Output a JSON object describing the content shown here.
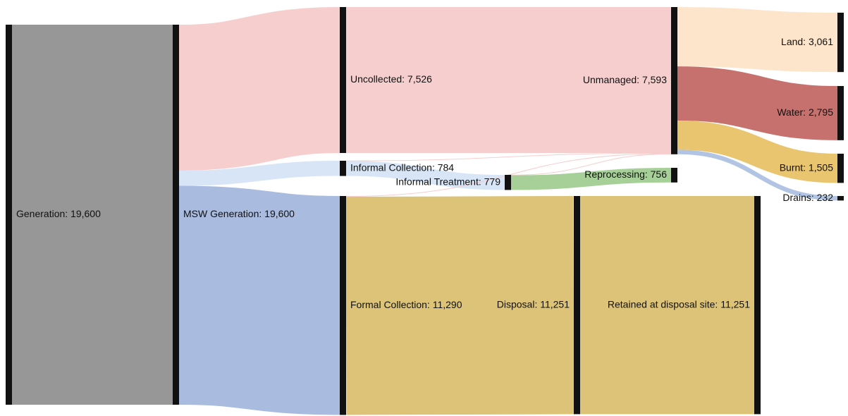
{
  "chart_data": {
    "type": "sankey",
    "nodes": [
      {
        "label": "Generation: 19,600",
        "value": 19600
      },
      {
        "label": "MSW Generation: 19,600",
        "value": 19600
      },
      {
        "label": "Uncollected: 7,526",
        "value": 7526
      },
      {
        "label": "Informal Collection: 784",
        "value": 784
      },
      {
        "label": "Formal Collection: 11,290",
        "value": 11290
      },
      {
        "label": "Informal Treatment: 779",
        "value": 779
      },
      {
        "label": "Disposal: 11,251",
        "value": 11251
      },
      {
        "label": "Unmanaged: 7,593",
        "value": 7593
      },
      {
        "label": "Reprocessing: 756",
        "value": 756
      },
      {
        "label": "Retained at disposal site: 11,251",
        "value": 11251
      },
      {
        "label": "Land: 3,061",
        "value": 3061
      },
      {
        "label": "Water: 2,795",
        "value": 2795
      },
      {
        "label": "Burnt: 1,505",
        "value": 1505
      },
      {
        "label": "Drains: 232",
        "value": 232
      }
    ],
    "links": [
      {
        "source": 0,
        "target": 1,
        "value": 19600,
        "color": "#8c8c8c"
      },
      {
        "source": 1,
        "target": 2,
        "value": 7526,
        "color": "#f5c9c9"
      },
      {
        "source": 1,
        "target": 3,
        "value": 784,
        "color": "#d3e2f5"
      },
      {
        "source": 1,
        "target": 4,
        "value": 11290,
        "color": "#a0b5dc"
      },
      {
        "source": 2,
        "target": 7,
        "value": 7526,
        "color": "#f5c9c9"
      },
      {
        "source": 3,
        "target": 7,
        "value": 5,
        "color": "#f5c9c9"
      },
      {
        "source": 3,
        "target": 5,
        "value": 779,
        "color": "#d3e2f5"
      },
      {
        "source": 4,
        "target": 7,
        "value": 39,
        "color": "#f5c9c9"
      },
      {
        "source": 4,
        "target": 6,
        "value": 11251,
        "color": "#d8bd68"
      },
      {
        "source": 5,
        "target": 7,
        "value": 23,
        "color": "#f5c9c9"
      },
      {
        "source": 5,
        "target": 8,
        "value": 756,
        "color": "#9ccb8c"
      },
      {
        "source": 6,
        "target": 9,
        "value": 11251,
        "color": "#d8bd68"
      },
      {
        "source": 7,
        "target": 10,
        "value": 3061,
        "color": "#fde2c6"
      },
      {
        "source": 7,
        "target": 11,
        "value": 2795,
        "color": "#c1625e"
      },
      {
        "source": 7,
        "target": 12,
        "value": 1505,
        "color": "#e6bf5e"
      },
      {
        "source": 7,
        "target": 13,
        "value": 232,
        "color": "#a9bee0"
      }
    ]
  }
}
